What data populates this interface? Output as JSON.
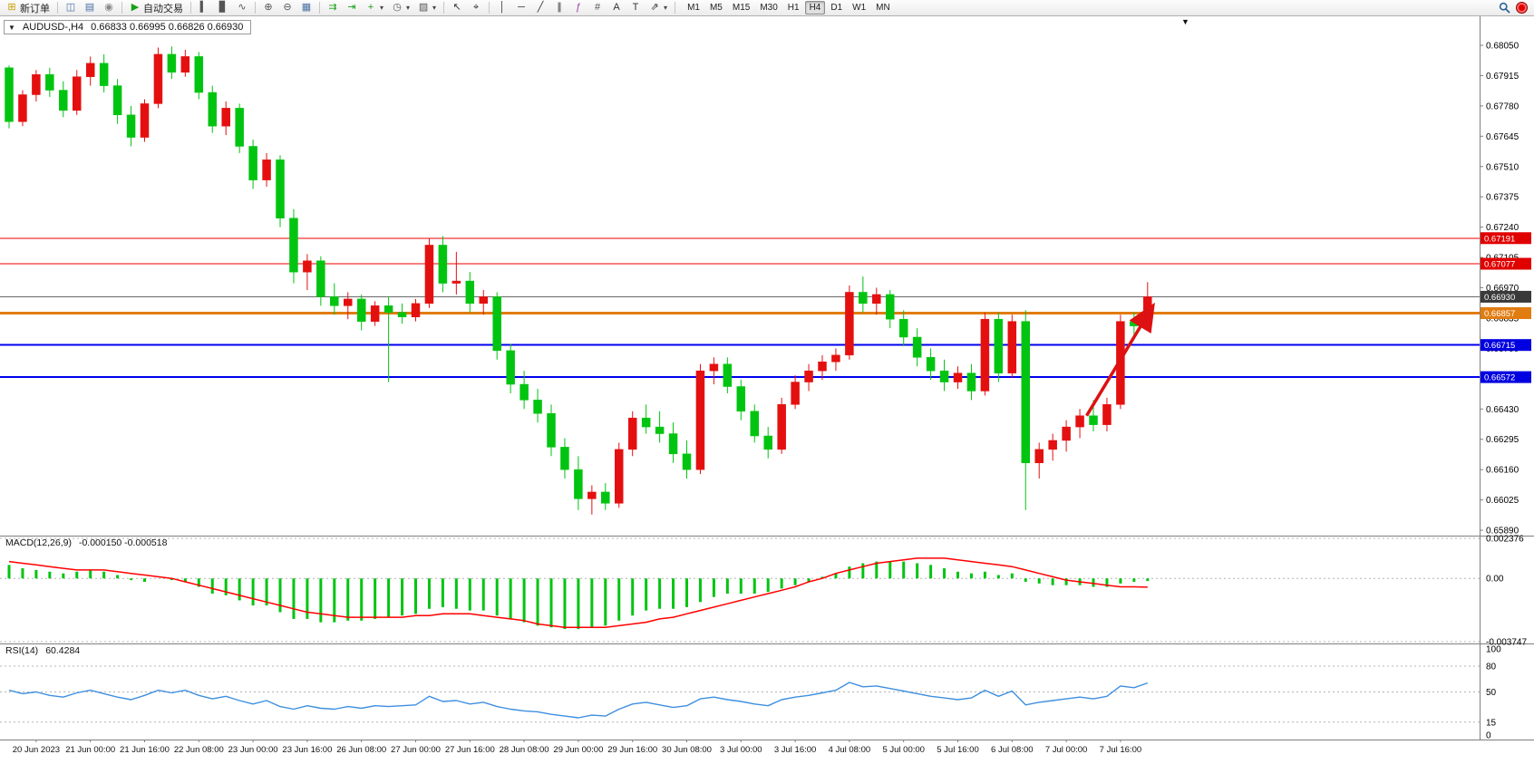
{
  "toolbar": {
    "groups": [
      [
        {
          "name": "new-order-button",
          "icon": "new-order-icon",
          "glyph": "⊞",
          "glyph_color": "#c8a000",
          "label": "新订单"
        }
      ],
      [
        {
          "name": "charts-window-button",
          "icon": "chart-window-icon",
          "glyph": "◫",
          "glyph_color": "#4a6fa5"
        },
        {
          "name": "market-watch-button",
          "icon": "market-watch-icon",
          "glyph": "▤",
          "glyph_color": "#4a6fa5"
        },
        {
          "name": "alerts-button",
          "icon": "alerts-icon",
          "glyph": "◉",
          "glyph_color": "#888888"
        }
      ],
      [
        {
          "name": "auto-trading-button",
          "icon": "play-icon",
          "glyph": "▶",
          "glyph_color": "#18a018",
          "label": "自动交易"
        }
      ],
      [
        {
          "name": "chart-bars-button",
          "icon": "bars-chart-icon",
          "glyph": "▍",
          "glyph_color": "#555555"
        },
        {
          "name": "chart-candles-button",
          "icon": "candles-chart-icon",
          "glyph": "▊",
          "glyph_color": "#555555"
        },
        {
          "name": "chart-line-button",
          "icon": "line-chart-icon",
          "glyph": "∿",
          "glyph_color": "#555555"
        }
      ],
      [
        {
          "name": "zoom-in-button",
          "icon": "zoom-in-icon",
          "glyph": "⊕",
          "glyph_color": "#555555"
        },
        {
          "name": "zoom-out-button",
          "icon": "zoom-out-icon",
          "glyph": "⊖",
          "glyph_color": "#555555"
        },
        {
          "name": "tile-windows-button",
          "icon": "tile-windows-icon",
          "glyph": "▦",
          "glyph_color": "#4a6fa5"
        }
      ],
      [
        {
          "name": "auto-scroll-button",
          "icon": "auto-scroll-icon",
          "glyph": "⇉",
          "glyph_color": "#18a018"
        },
        {
          "name": "chart-shift-button",
          "icon": "chart-shift-icon",
          "glyph": "⇥",
          "glyph_color": "#18a018"
        },
        {
          "name": "new-chart-button",
          "icon": "new-chart-icon",
          "glyph": "+",
          "glyph_color": "#18a018",
          "caret": true
        },
        {
          "name": "period-button",
          "icon": "clock-icon",
          "glyph": "◷",
          "glyph_color": "#555555",
          "caret": true
        },
        {
          "name": "templates-button",
          "icon": "template-icon",
          "glyph": "▨",
          "glyph_color": "#555555",
          "caret": true
        }
      ],
      [
        {
          "name": "cursor-button",
          "icon": "cursor-icon",
          "glyph": "↖",
          "glyph_color": "#333333"
        },
        {
          "name": "crosshair-button",
          "icon": "crosshair-icon",
          "glyph": "⌖",
          "glyph_color": "#333333"
        }
      ],
      [
        {
          "name": "vertical-line-button",
          "icon": "vertical-line-icon",
          "glyph": "│",
          "glyph_color": "#333333"
        },
        {
          "name": "horizontal-line-button",
          "icon": "horizontal-line-icon",
          "glyph": "─",
          "glyph_color": "#333333"
        },
        {
          "name": "trendline-button",
          "icon": "trendline-icon",
          "glyph": "╱",
          "glyph_color": "#333333"
        },
        {
          "name": "channel-button",
          "icon": "channel-icon",
          "glyph": "∥",
          "glyph_color": "#333333"
        },
        {
          "name": "fibonacci-button",
          "icon": "fibonacci-icon",
          "glyph": "ƒ",
          "glyph_color": "#a040a0"
        },
        {
          "name": "grid-button",
          "icon": "grid-icon",
          "glyph": "#",
          "glyph_color": "#555555"
        },
        {
          "name": "text-button",
          "icon": "text-icon",
          "glyph": "A",
          "glyph_color": "#333333"
        },
        {
          "name": "text-label-button",
          "icon": "text-label-icon",
          "glyph": "T",
          "glyph_color": "#333333"
        },
        {
          "name": "arrow-objects-button",
          "icon": "arrow-object-icon",
          "glyph": "⇗",
          "glyph_color": "#333333",
          "caret": true
        }
      ]
    ],
    "timeframes": [
      "M1",
      "M5",
      "M15",
      "M30",
      "H1",
      "H4",
      "D1",
      "W1",
      "MN"
    ],
    "active_timeframe": "H4"
  },
  "chart": {
    "symbol_period": "AUDUSD-,H4",
    "ohlc": "0.66833 0.66995 0.66826 0.66930",
    "collapse_icon": "▼",
    "shift_marker": "▼"
  },
  "chart_data": {
    "type": "candlestick",
    "title": "AUDUSD-,H4",
    "ohlc_display": {
      "open": "0.66833",
      "high": "0.66995",
      "low": "0.66826",
      "close": "0.66930"
    },
    "up_color": "#e41010",
    "down_color": "#00c410",
    "price_axis": {
      "min": 0.6589,
      "max": 0.6805,
      "tick_step": 0.00135,
      "labels": [
        "0.68050",
        "0.67915",
        "0.67780",
        "0.67645",
        "0.67510",
        "0.67375",
        "0.67240",
        "0.67105",
        "0.66970",
        "0.66835",
        "0.66700",
        "0.66565",
        "0.66430",
        "0.66295",
        "0.66160",
        "0.66025",
        "0.65890"
      ]
    },
    "time_labels": [
      "20 Jun 2023",
      "21 Jun 00:00",
      "21 Jun 16:00",
      "22 Jun 08:00",
      "23 Jun 00:00",
      "23 Jun 16:00",
      "26 Jun 08:00",
      "27 Jun 00:00",
      "27 Jun 16:00",
      "28 Jun 08:00",
      "29 Jun 00:00",
      "29 Jun 16:00",
      "30 Jun 08:00",
      "3 Jul 00:00",
      "3 Jul 16:00",
      "4 Jul 08:00",
      "5 Jul 00:00",
      "5 Jul 16:00",
      "6 Jul 08:00",
      "7 Jul 00:00",
      "7 Jul 16:00"
    ],
    "candles": [
      [
        0.6795,
        0.6796,
        0.6768,
        0.6771
      ],
      [
        0.6771,
        0.6785,
        0.6769,
        0.6783
      ],
      [
        0.6783,
        0.6794,
        0.678,
        0.6792
      ],
      [
        0.6792,
        0.6795,
        0.6782,
        0.6785
      ],
      [
        0.6785,
        0.6789,
        0.6773,
        0.6776
      ],
      [
        0.6776,
        0.6794,
        0.6774,
        0.6791
      ],
      [
        0.6791,
        0.68,
        0.6787,
        0.6797
      ],
      [
        0.6797,
        0.6801,
        0.6784,
        0.6787
      ],
      [
        0.6787,
        0.679,
        0.677,
        0.6774
      ],
      [
        0.6774,
        0.6778,
        0.676,
        0.6764
      ],
      [
        0.6764,
        0.6781,
        0.6762,
        0.6779
      ],
      [
        0.6779,
        0.6804,
        0.6777,
        0.6801
      ],
      [
        0.6801,
        0.68045,
        0.679,
        0.6793
      ],
      [
        0.6793,
        0.6803,
        0.6791,
        0.68
      ],
      [
        0.68,
        0.6802,
        0.6781,
        0.6784
      ],
      [
        0.6784,
        0.6787,
        0.6766,
        0.6769
      ],
      [
        0.6769,
        0.678,
        0.6765,
        0.6777
      ],
      [
        0.6777,
        0.6779,
        0.6757,
        0.676
      ],
      [
        0.676,
        0.6763,
        0.6741,
        0.6745
      ],
      [
        0.6745,
        0.6757,
        0.6742,
        0.6754
      ],
      [
        0.6754,
        0.6756,
        0.6724,
        0.6728
      ],
      [
        0.6728,
        0.6732,
        0.6699,
        0.6704
      ],
      [
        0.6704,
        0.6712,
        0.6696,
        0.6709
      ],
      [
        0.6709,
        0.6711,
        0.6689,
        0.6693
      ],
      [
        0.6693,
        0.6699,
        0.6685,
        0.6689
      ],
      [
        0.6689,
        0.6695,
        0.6683,
        0.6692
      ],
      [
        0.6692,
        0.6694,
        0.6678,
        0.6682
      ],
      [
        0.6682,
        0.6691,
        0.668,
        0.6689
      ],
      [
        0.6689,
        0.6693,
        0.6655,
        0.6686
      ],
      [
        0.6686,
        0.669,
        0.6681,
        0.6684
      ],
      [
        0.6684,
        0.6692,
        0.6682,
        0.669
      ],
      [
        0.669,
        0.6719,
        0.6688,
        0.6716
      ],
      [
        0.6716,
        0.672,
        0.6695,
        0.6699
      ],
      [
        0.6699,
        0.6713,
        0.6694,
        0.67
      ],
      [
        0.67,
        0.6704,
        0.6686,
        0.669
      ],
      [
        0.669,
        0.6696,
        0.6685,
        0.6693
      ],
      [
        0.6693,
        0.6695,
        0.6665,
        0.6669
      ],
      [
        0.6669,
        0.6672,
        0.665,
        0.6654
      ],
      [
        0.6654,
        0.666,
        0.6643,
        0.6647
      ],
      [
        0.6647,
        0.6652,
        0.6637,
        0.6641
      ],
      [
        0.6641,
        0.6645,
        0.6622,
        0.6626
      ],
      [
        0.6626,
        0.663,
        0.6612,
        0.6616
      ],
      [
        0.6616,
        0.6622,
        0.6598,
        0.6603
      ],
      [
        0.6603,
        0.6609,
        0.6596,
        0.6606
      ],
      [
        0.6606,
        0.661,
        0.6598,
        0.6601
      ],
      [
        0.6601,
        0.6628,
        0.6599,
        0.6625
      ],
      [
        0.6625,
        0.6642,
        0.6622,
        0.6639
      ],
      [
        0.6639,
        0.6645,
        0.6632,
        0.6635
      ],
      [
        0.6635,
        0.6642,
        0.6628,
        0.6632
      ],
      [
        0.6632,
        0.6637,
        0.6619,
        0.6623
      ],
      [
        0.6623,
        0.6629,
        0.6612,
        0.6616
      ],
      [
        0.6616,
        0.6663,
        0.6614,
        0.666
      ],
      [
        0.666,
        0.6666,
        0.6654,
        0.6663
      ],
      [
        0.6663,
        0.6666,
        0.665,
        0.6653
      ],
      [
        0.6653,
        0.6656,
        0.6638,
        0.6642
      ],
      [
        0.6642,
        0.6645,
        0.6628,
        0.6631
      ],
      [
        0.6631,
        0.6635,
        0.6621,
        0.6625
      ],
      [
        0.6625,
        0.6648,
        0.6623,
        0.6645
      ],
      [
        0.6645,
        0.6658,
        0.6643,
        0.6655
      ],
      [
        0.6655,
        0.6663,
        0.6651,
        0.666
      ],
      [
        0.666,
        0.6667,
        0.6656,
        0.6664
      ],
      [
        0.6664,
        0.667,
        0.666,
        0.6667
      ],
      [
        0.6667,
        0.6698,
        0.6665,
        0.6695
      ],
      [
        0.6695,
        0.6702,
        0.6686,
        0.669
      ],
      [
        0.669,
        0.6697,
        0.6685,
        0.6694
      ],
      [
        0.6694,
        0.6696,
        0.6679,
        0.6683
      ],
      [
        0.6683,
        0.6687,
        0.6671,
        0.6675
      ],
      [
        0.6675,
        0.6679,
        0.6662,
        0.6666
      ],
      [
        0.6666,
        0.667,
        0.6656,
        0.666
      ],
      [
        0.666,
        0.6665,
        0.6651,
        0.6655
      ],
      [
        0.6655,
        0.6662,
        0.6652,
        0.6659
      ],
      [
        0.6659,
        0.6663,
        0.6647,
        0.6651
      ],
      [
        0.6651,
        0.6686,
        0.6649,
        0.6683
      ],
      [
        0.6683,
        0.6686,
        0.6655,
        0.6659
      ],
      [
        0.6659,
        0.6685,
        0.6657,
        0.6682
      ],
      [
        0.6682,
        0.6687,
        0.6598,
        0.6619
      ],
      [
        0.6619,
        0.6628,
        0.6612,
        0.6625
      ],
      [
        0.6625,
        0.6632,
        0.662,
        0.6629
      ],
      [
        0.6629,
        0.6638,
        0.6624,
        0.6635
      ],
      [
        0.6635,
        0.6643,
        0.663,
        0.664
      ],
      [
        0.664,
        0.6647,
        0.6633,
        0.6636
      ],
      [
        0.6636,
        0.6648,
        0.6633,
        0.6645
      ],
      [
        0.6645,
        0.6685,
        0.6643,
        0.6682
      ],
      [
        0.6682,
        0.6686,
        0.6676,
        0.668
      ],
      [
        0.66833,
        0.66995,
        0.66826,
        0.6693
      ]
    ],
    "hlines": [
      {
        "price": 0.67191,
        "label": "0.67191",
        "color": "#ee0000",
        "width": 1,
        "box_color": "#e00000"
      },
      {
        "price": 0.67077,
        "label": "0.67077",
        "color": "#ee0000",
        "width": 1,
        "box_color": "#e00000"
      },
      {
        "price": 0.6693,
        "label": "0.66930",
        "color": "#6a6a6a",
        "width": 1,
        "box_color": "#3a3a3a"
      },
      {
        "price": 0.66857,
        "label": "0.66857",
        "color": "#e07c10",
        "width": 3,
        "box_color": "#e07c10"
      },
      {
        "price": 0.66715,
        "label": "0.66715",
        "color": "#0000ee",
        "width": 2,
        "box_color": "#0000e0"
      },
      {
        "price": 0.66572,
        "label": "0.66572",
        "color": "#0000ee",
        "width": 2,
        "box_color": "#0000e0"
      }
    ],
    "annotations": [
      {
        "type": "arrow",
        "from_bar": 79.5,
        "from_price": 0.664,
        "to_bar": 84.3,
        "to_price": 0.6688,
        "color": "#dd1111"
      }
    ],
    "macd": {
      "name": "MACD(12,26,9)",
      "values_text": "-0.000150 -0.000518",
      "axis_labels": [
        "0.002376",
        "0.00",
        "-0.003747"
      ],
      "axis_values": [
        0.002376,
        0,
        -0.003747
      ],
      "hist_color": "#00c410",
      "signal_color": "#ff0000",
      "histogram": [
        0.0008,
        0.0006,
        0.0005,
        0.0004,
        0.0003,
        0.0004,
        0.0005,
        0.0004,
        0.0002,
        -0.0001,
        -0.0002,
        0.0,
        -0.0001,
        -0.0002,
        -0.0005,
        -0.0009,
        -0.001,
        -0.0013,
        -0.0016,
        -0.0016,
        -0.002,
        -0.0024,
        -0.0024,
        -0.0026,
        -0.0026,
        -0.0025,
        -0.0025,
        -0.0024,
        -0.0023,
        -0.0022,
        -0.0021,
        -0.0018,
        -0.0017,
        -0.0018,
        -0.0019,
        -0.0019,
        -0.0022,
        -0.0024,
        -0.0026,
        -0.0028,
        -0.0029,
        -0.003,
        -0.003,
        -0.0029,
        -0.0028,
        -0.0025,
        -0.0022,
        -0.0019,
        -0.0018,
        -0.0018,
        -0.0017,
        -0.0014,
        -0.0011,
        -0.0009,
        -0.0009,
        -0.0009,
        -0.0008,
        -0.0006,
        -0.0004,
        -0.0002,
        0.0001,
        0.0003,
        0.0007,
        0.0009,
        0.001,
        0.001,
        0.001,
        0.0009,
        0.0008,
        0.0006,
        0.0004,
        0.0003,
        0.0004,
        0.0002,
        0.0003,
        -0.0002,
        -0.0003,
        -0.0004,
        -0.0004,
        -0.0004,
        -0.0005,
        -0.0005,
        -0.0003,
        -0.0002,
        -0.00015
      ],
      "signal": [
        0.001,
        0.0009,
        0.0008,
        0.0007,
        0.0006,
        0.0005,
        0.0005,
        0.0005,
        0.0004,
        0.0003,
        0.0002,
        0.0001,
        0.0,
        -0.0002,
        -0.0004,
        -0.0006,
        -0.0008,
        -0.001,
        -0.0012,
        -0.0014,
        -0.0016,
        -0.0018,
        -0.002,
        -0.0021,
        -0.0022,
        -0.0023,
        -0.0023,
        -0.0023,
        -0.0023,
        -0.0023,
        -0.0022,
        -0.0022,
        -0.0021,
        -0.0021,
        -0.0021,
        -0.0022,
        -0.0023,
        -0.0024,
        -0.0025,
        -0.0027,
        -0.0028,
        -0.0029,
        -0.0029,
        -0.0029,
        -0.0029,
        -0.0028,
        -0.0027,
        -0.0026,
        -0.0024,
        -0.0023,
        -0.0021,
        -0.0019,
        -0.0017,
        -0.0015,
        -0.0013,
        -0.0011,
        -0.0009,
        -0.0007,
        -0.0005,
        -0.0002,
        0.0,
        0.0003,
        0.0005,
        0.0007,
        0.0009,
        0.001,
        0.0011,
        0.0012,
        0.0012,
        0.0012,
        0.0011,
        0.001,
        0.0009,
        0.0008,
        0.0007,
        0.0005,
        0.0003,
        0.0001,
        -0.0001,
        -0.0002,
        -0.0003,
        -0.0004,
        -0.0005,
        -0.0005,
        -0.000518
      ]
    },
    "rsi": {
      "name": "RSI(14)",
      "value_text": "60.4284",
      "color": "#3e8fe0",
      "levels": [
        100,
        80,
        50,
        15,
        0
      ],
      "dashed_levels": [
        80,
        50,
        15
      ],
      "series": [
        52,
        48,
        50,
        46,
        44,
        49,
        52,
        48,
        44,
        41,
        46,
        52,
        49,
        52,
        46,
        42,
        45,
        40,
        36,
        40,
        33,
        30,
        34,
        31,
        30,
        33,
        31,
        34,
        33,
        34,
        35,
        45,
        39,
        40,
        36,
        38,
        33,
        30,
        28,
        27,
        24,
        22,
        20,
        23,
        22,
        30,
        36,
        38,
        35,
        32,
        34,
        42,
        44,
        41,
        39,
        36,
        34,
        41,
        44,
        46,
        49,
        52,
        61,
        56,
        57,
        54,
        51,
        48,
        45,
        43,
        41,
        43,
        52,
        45,
        51,
        35,
        38,
        40,
        42,
        44,
        42,
        45,
        57,
        55,
        60.4284
      ]
    }
  }
}
